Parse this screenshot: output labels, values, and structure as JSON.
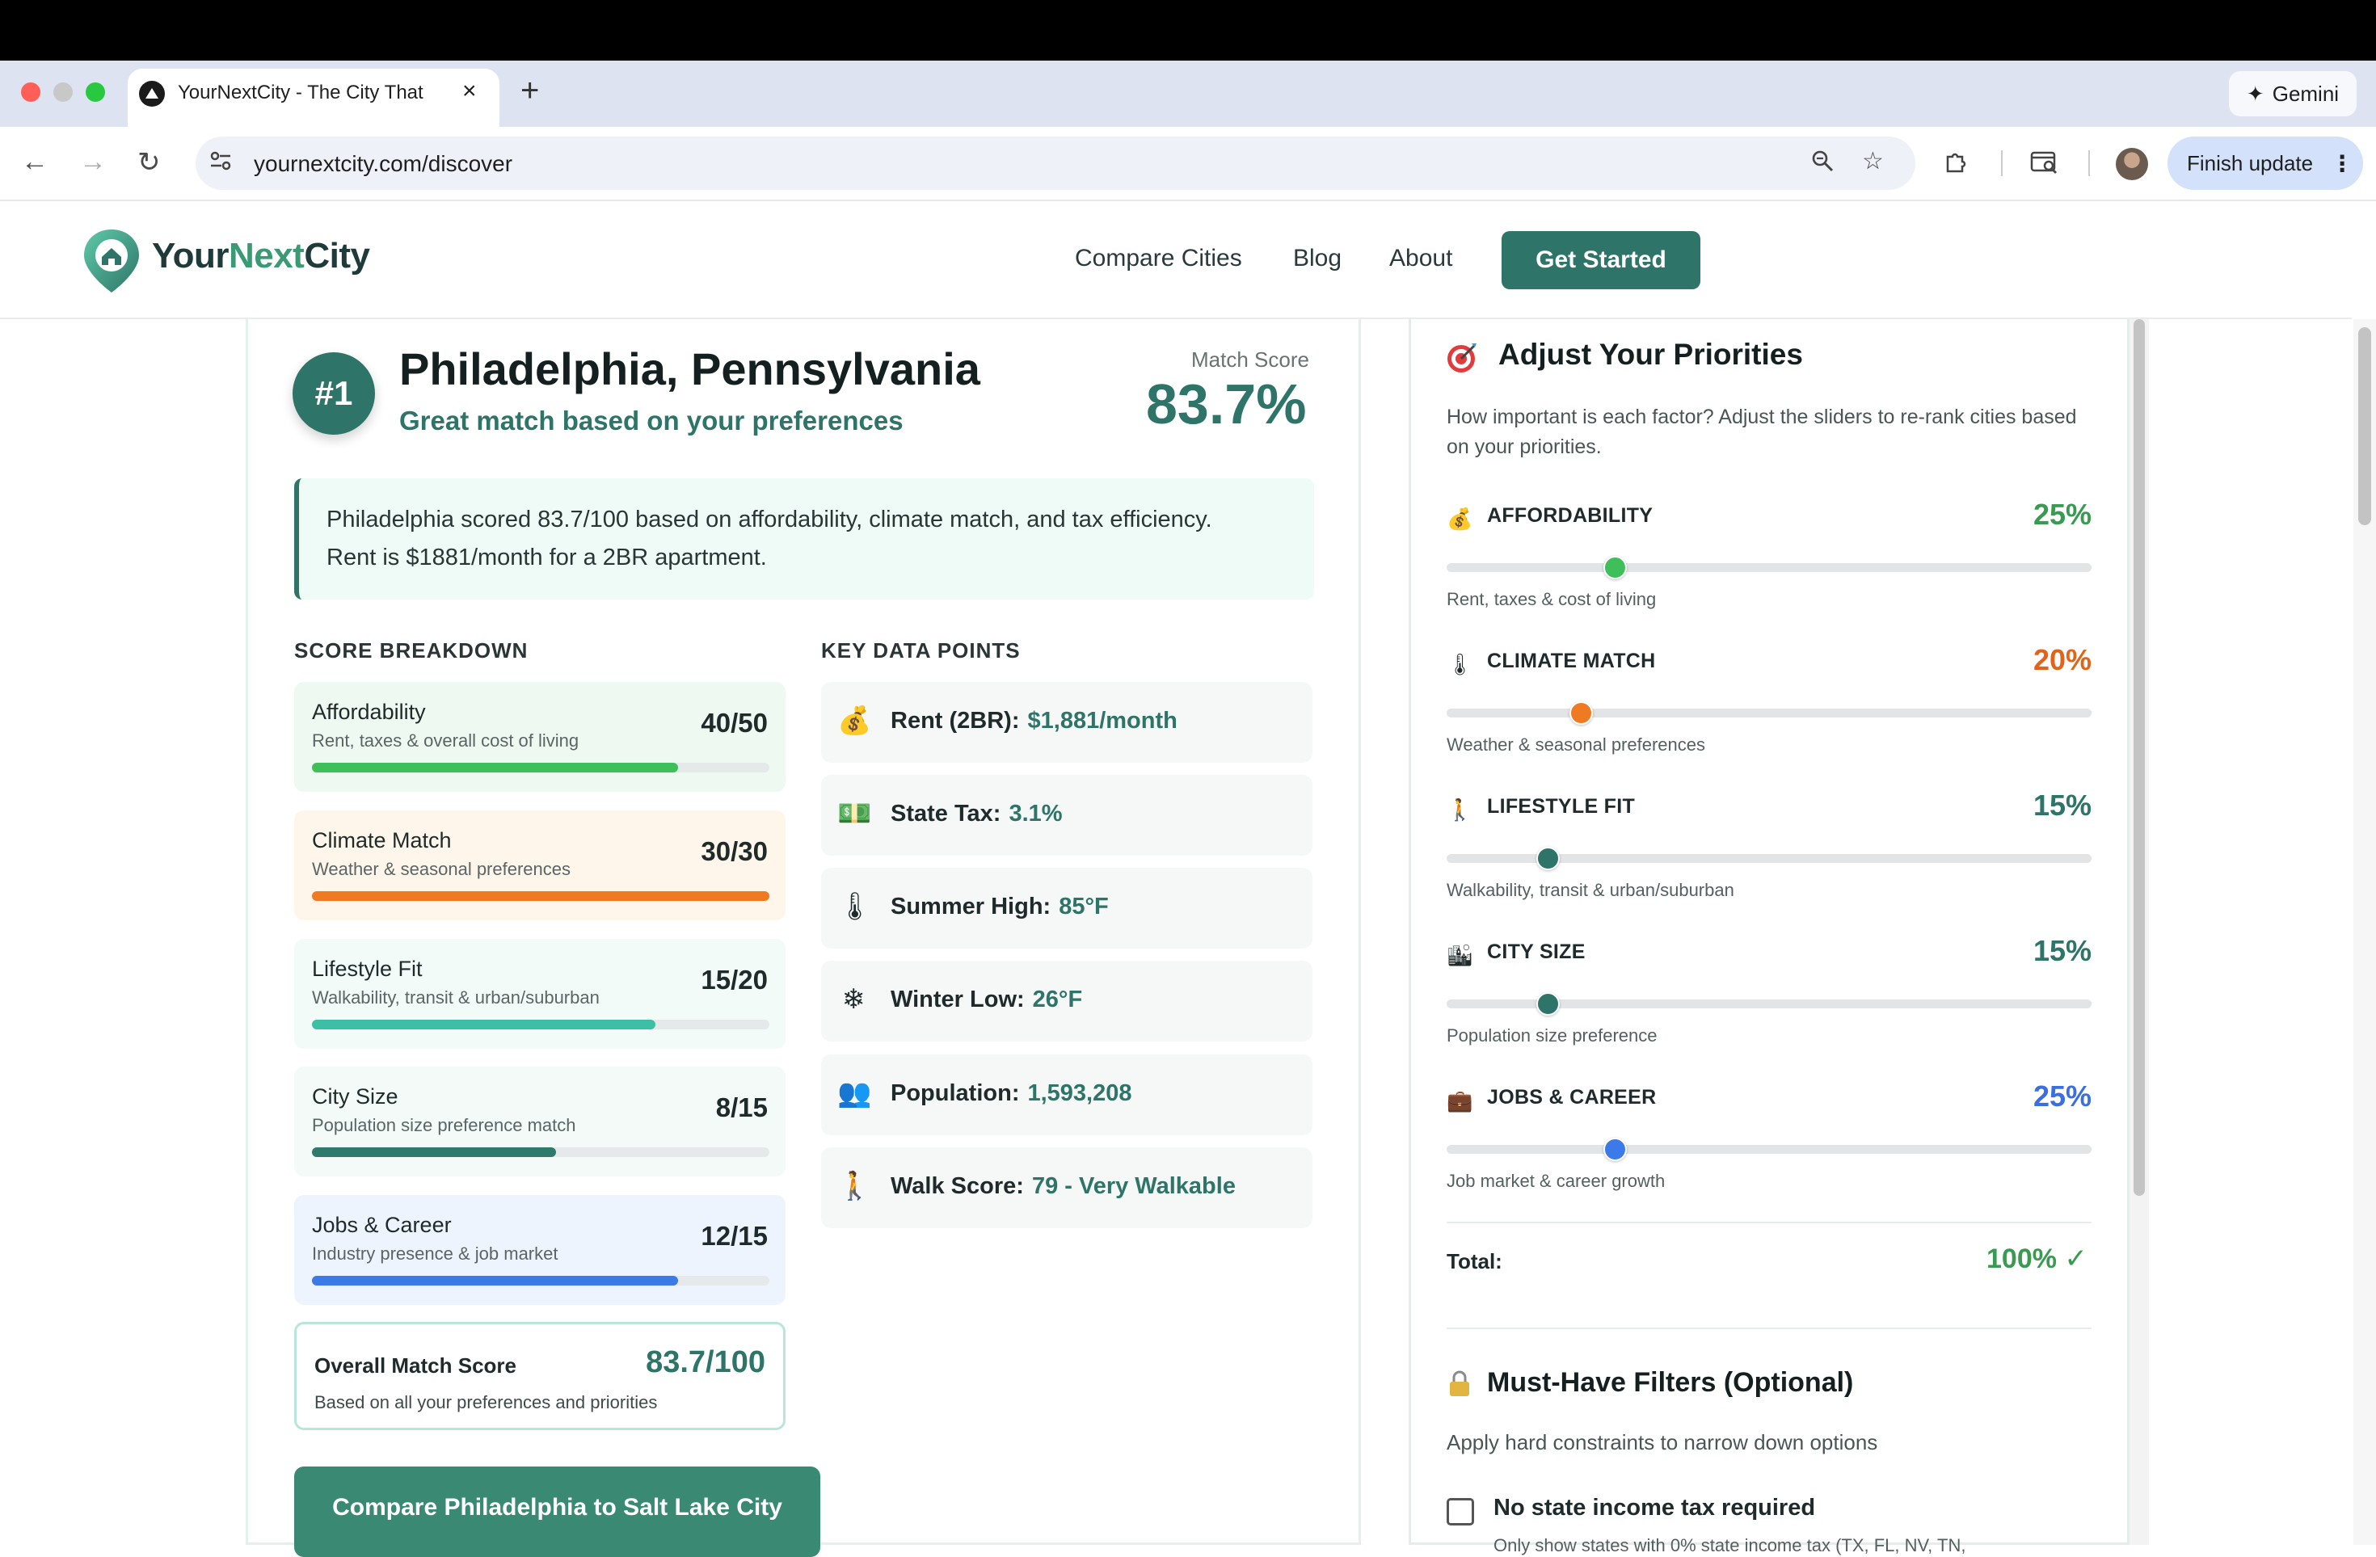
{
  "browser": {
    "tab_title": "YourNextCity - The City That",
    "url": "yournextcity.com/discover",
    "gemini_label": "Gemini",
    "finish_update_label": "Finish update"
  },
  "header": {
    "logo_your": "Your",
    "logo_next": "Next",
    "logo_city": "City",
    "nav": [
      "Compare Cities",
      "Blog",
      "About"
    ],
    "cta": "Get Started"
  },
  "result": {
    "rank": "#1",
    "city": "Philadelphia, Pennsylvania",
    "subtitle": "Great match based on your preferences",
    "match_score_label": "Match Score",
    "match_score": "83.7%",
    "summary_line1": "Philadelphia scored 83.7/100 based on affordability, climate match, and tax efficiency.",
    "summary_line2": "Rent is $1881/month for a 2BR apartment."
  },
  "score_breakdown": {
    "heading": "SCORE BREAKDOWN",
    "items": [
      {
        "name": "Affordability",
        "desc": "Rent, taxes & overall cost of living",
        "score": "40/50",
        "fraction": 0.8,
        "color": "#3fbf5a",
        "bg": "#eef9f1"
      },
      {
        "name": "Climate Match",
        "desc": "Weather & seasonal preferences",
        "score": "30/30",
        "fraction": 1.0,
        "color": "#f07a22",
        "bg": "#fff6eb"
      },
      {
        "name": "Lifestyle Fit",
        "desc": "Walkability, transit & urban/suburban",
        "score": "15/20",
        "fraction": 0.75,
        "color": "#3cbfa4",
        "bg": "#f2fbf8"
      },
      {
        "name": "City Size",
        "desc": "Population size preference match",
        "score": "8/15",
        "fraction": 0.533,
        "color": "#2e7a6c",
        "bg": "#f3faf7"
      },
      {
        "name": "Jobs & Career",
        "desc": "Industry presence & job market",
        "score": "12/15",
        "fraction": 0.8,
        "color": "#3b7ae8",
        "bg": "#eef4fd"
      }
    ],
    "overall_label": "Overall Match Score",
    "overall_value": "83.7/100",
    "overall_desc": "Based on all your preferences and priorities"
  },
  "compare_button": "Compare Philadelphia to Salt Lake City",
  "key_data": {
    "heading": "KEY DATA POINTS",
    "items": [
      {
        "icon": "money-bag-icon",
        "glyph": "💰",
        "label": "Rent (2BR):",
        "value": "$1,881/month"
      },
      {
        "icon": "banknote-icon",
        "glyph": "💵",
        "label": "State Tax:",
        "value": "3.1%"
      },
      {
        "icon": "thermometer-icon",
        "glyph": "🌡",
        "label": "Summer High:",
        "value": "85°F"
      },
      {
        "icon": "snowflake-icon",
        "glyph": "❄",
        "label": "Winter Low:",
        "value": "26°F"
      },
      {
        "icon": "people-icon",
        "glyph": "👥",
        "label": "Population:",
        "value": "1,593,208"
      },
      {
        "icon": "walking-icon",
        "glyph": "🚶",
        "label": "Walk Score:",
        "value": "79 - Very Walkable"
      }
    ]
  },
  "priorities": {
    "heading": "Adjust Your Priorities",
    "desc": "How important is each factor? Adjust the sliders to re-rank cities based on your priorities.",
    "items": [
      {
        "icon": "money-bag-icon",
        "glyph": "💰",
        "label": "AFFORDABILITY",
        "pct": "25%",
        "value": 0.25,
        "color": "#3a9a52",
        "thumb": "#3fbf5a",
        "desc": "Rent, taxes & cost of living"
      },
      {
        "icon": "thermometer-icon",
        "glyph": "🌡",
        "label": "CLIMATE MATCH",
        "pct": "20%",
        "value": 0.2,
        "color": "#e0651a",
        "thumb": "#f07a22",
        "desc": "Weather & seasonal preferences"
      },
      {
        "icon": "walking-icon",
        "glyph": "🚶",
        "label": "LIFESTYLE FIT",
        "pct": "15%",
        "value": 0.15,
        "color": "#2e7468",
        "thumb": "#2e7468",
        "desc": "Walkability, transit & urban/suburban"
      },
      {
        "icon": "city-icon",
        "glyph": "🏙",
        "label": "CITY SIZE",
        "pct": "15%",
        "value": 0.15,
        "color": "#2e7468",
        "thumb": "#2e7468",
        "desc": "Population size preference"
      },
      {
        "icon": "briefcase-icon",
        "glyph": "💼",
        "label": "JOBS & CAREER",
        "pct": "25%",
        "value": 0.25,
        "color": "#3b6fe0",
        "thumb": "#3b7ae8",
        "desc": "Job market & career growth"
      }
    ],
    "total_label": "Total:",
    "total_value": "100% ✓"
  },
  "must_have": {
    "heading": "Must-Have Filters (Optional)",
    "desc": "Apply hard constraints to narrow down options",
    "checkbox_label": "No state income tax required",
    "checkbox_sub": "Only show states with 0% state income tax (TX, FL, NV, TN,",
    "checked": false
  },
  "colors": {
    "brand": "#2e7468",
    "brand_light": "#3fbf5a"
  }
}
